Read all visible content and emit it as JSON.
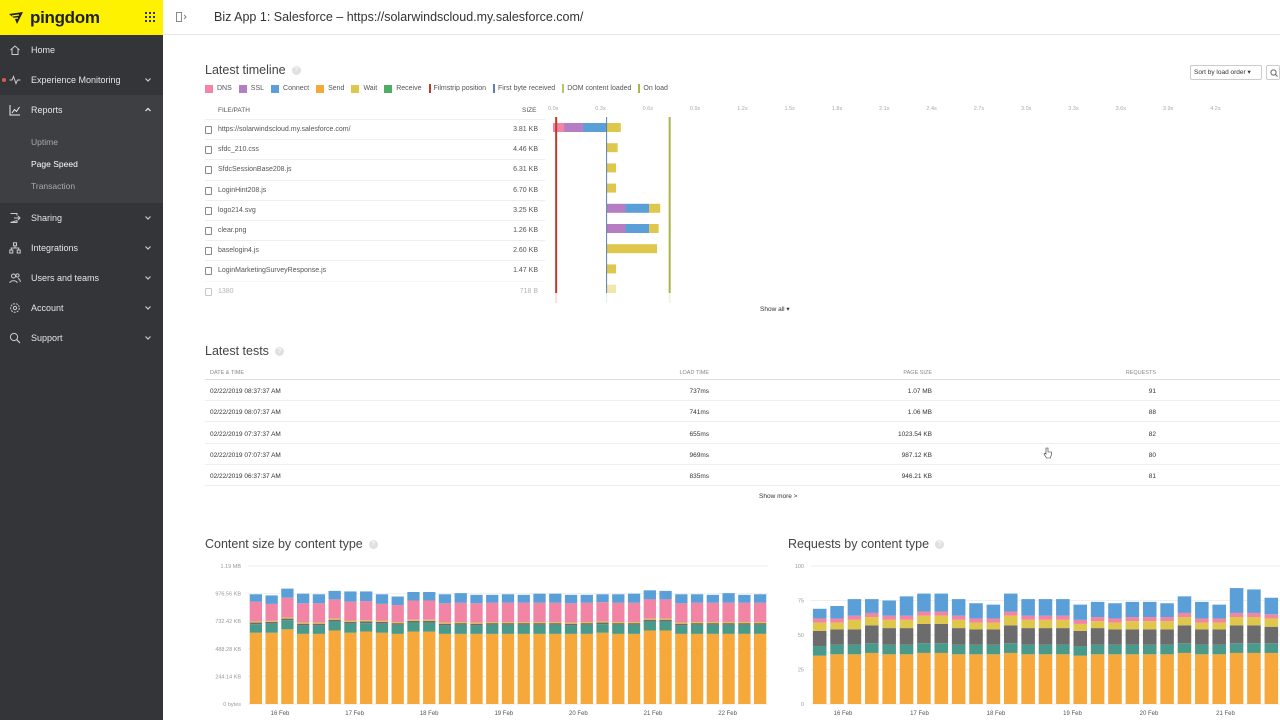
{
  "brand": {
    "name": "pingdom"
  },
  "sidebar": {
    "items": [
      {
        "label": "Home",
        "icon": "home-icon"
      },
      {
        "label": "Experience Monitoring",
        "icon": "pulse-icon"
      },
      {
        "label": "Reports",
        "icon": "chart-icon"
      },
      {
        "label": "Sharing",
        "icon": "share-icon"
      },
      {
        "label": "Integrations",
        "icon": "integrations-icon"
      },
      {
        "label": "Users and teams",
        "icon": "users-icon"
      },
      {
        "label": "Account",
        "icon": "gear-icon"
      },
      {
        "label": "Support",
        "icon": "support-icon"
      }
    ],
    "reports_sub": [
      {
        "label": "Uptime"
      },
      {
        "label": "Page Speed"
      },
      {
        "label": "Transaction"
      }
    ]
  },
  "topbar": {
    "title": "Biz App 1: Salesforce – https://solarwindscloud.my.salesforce.com/"
  },
  "timeline": {
    "title": "Latest timeline",
    "sort_label": "Sort by load order ▾",
    "legend": [
      {
        "label": "DNS",
        "color": "#f285a5",
        "kind": "box"
      },
      {
        "label": "SSL",
        "color": "#b57ec2",
        "kind": "box"
      },
      {
        "label": "Connect",
        "color": "#5a9fd8",
        "kind": "box"
      },
      {
        "label": "Send",
        "color": "#f6a83a",
        "kind": "box"
      },
      {
        "label": "Wait",
        "color": "#dfc74b",
        "kind": "box"
      },
      {
        "label": "Receive",
        "color": "#4fae64",
        "kind": "box"
      },
      {
        "label": "Filmstrip position",
        "color": "#c0392b",
        "kind": "line"
      },
      {
        "label": "First byte received",
        "color": "#5a7fa8",
        "kind": "line"
      },
      {
        "label": "DOM content loaded",
        "color": "#b8c66a",
        "kind": "line"
      },
      {
        "label": "On load",
        "color": "#aab44a",
        "kind": "line"
      }
    ],
    "col_file": "FILE/PATH",
    "col_size": "SIZE",
    "ticks": [
      "0.0s",
      "0.3s",
      "0.6s",
      "0.9s",
      "1.2s",
      "1.5s",
      "1.8s",
      "2.1s",
      "2.4s",
      "2.7s",
      "3.0s",
      "3.3s",
      "3.6s",
      "3.9s",
      "4.2s"
    ],
    "rows": [
      {
        "name": "https://solarwindscloud.my.salesforce.com/",
        "size": "3.81 KB",
        "icon": "file-icon",
        "segments": [
          [
            0.0,
            0.07,
            "#f285a5"
          ],
          [
            0.07,
            0.19,
            "#b57ec2"
          ],
          [
            0.19,
            0.34,
            "#5a9fd8"
          ],
          [
            0.34,
            0.43,
            "#dfc74b"
          ]
        ]
      },
      {
        "name": "sfdc_210.css",
        "size": "4.46 KB",
        "icon": "css-icon",
        "segments": [
          [
            0.34,
            0.41,
            "#dfc74b"
          ]
        ]
      },
      {
        "name": "SfdcSessionBase208.js",
        "size": "6.31 KB",
        "icon": "script-icon",
        "segments": [
          [
            0.34,
            0.4,
            "#dfc74b"
          ]
        ]
      },
      {
        "name": "LoginHint208.js",
        "size": "6.70 KB",
        "icon": "script-icon",
        "segments": [
          [
            0.34,
            0.4,
            "#dfc74b"
          ]
        ]
      },
      {
        "name": "logo214.svg",
        "size": "3.25 KB",
        "icon": "image-icon",
        "segments": [
          [
            0.34,
            0.46,
            "#b57ec2"
          ],
          [
            0.46,
            0.61,
            "#5a9fd8"
          ],
          [
            0.61,
            0.68,
            "#dfc74b"
          ]
        ]
      },
      {
        "name": "clear.png",
        "size": "1.26 KB",
        "icon": "image-icon",
        "segments": [
          [
            0.34,
            0.46,
            "#b57ec2"
          ],
          [
            0.46,
            0.61,
            "#5a9fd8"
          ],
          [
            0.61,
            0.67,
            "#dfc74b"
          ]
        ]
      },
      {
        "name": "baselogin4.js",
        "size": "2.60 KB",
        "icon": "script-icon",
        "segments": [
          [
            0.34,
            0.66,
            "#dfc74b"
          ]
        ]
      },
      {
        "name": "LoginMarketingSurveyResponse.js",
        "size": "1.47 KB",
        "icon": "script-icon",
        "segments": [
          [
            0.34,
            0.4,
            "#dfc74b"
          ]
        ]
      },
      {
        "name": "1380",
        "size": "718 B",
        "icon": "image-icon",
        "segments": [
          [
            0.34,
            0.4,
            "#dfc74b"
          ]
        ]
      }
    ],
    "markers": [
      {
        "name": "filmstrip",
        "t": 0.02,
        "color": "#c0392b"
      },
      {
        "name": "first-byte",
        "t": 0.34,
        "color": "#5a7fa8"
      },
      {
        "name": "on-load",
        "t": 0.74,
        "color": "#aab44a"
      }
    ],
    "show_all": "Show all ▾"
  },
  "tests": {
    "title": "Latest tests",
    "headers": [
      "DATE & TIME",
      "LOAD TIME",
      "PAGE SIZE",
      "REQUESTS"
    ],
    "rows": [
      [
        "02/22/2019 08:37:37 AM",
        "737ms",
        "1.07 MB",
        "91"
      ],
      [
        "02/22/2019 08:07:37 AM",
        "741ms",
        "1.06 MB",
        "88"
      ],
      [
        "02/22/2019 07:37:37 AM",
        "655ms",
        "1023.54 KB",
        "82"
      ],
      [
        "02/22/2019 07:07:37 AM",
        "969ms",
        "987.12 KB",
        "80"
      ],
      [
        "02/22/2019 06:37:37 AM",
        "835ms",
        "946.21 KB",
        "81"
      ]
    ],
    "show_more": "Show more >"
  },
  "charts": {
    "content_size_title": "Content size by content type",
    "requests_title": "Requests by content type"
  },
  "chart_data": [
    {
      "type": "bar",
      "stacked": true,
      "title": "Content size by content type",
      "y_tick_labels": [
        "0 bytes",
        "244.14 KB",
        "488.28 KB",
        "732.42 KB",
        "976.56 KB",
        "1.19 MB"
      ],
      "ylim": [
        0,
        1220
      ],
      "x_tick_labels": [
        "16 Feb",
        "17 Feb",
        "18 Feb",
        "19 Feb",
        "20 Feb",
        "21 Feb",
        "22 Feb"
      ],
      "series": [
        {
          "color": "#f6a83a",
          "values": [
            630,
            630,
            660,
            620,
            620,
            650,
            630,
            640,
            630,
            620,
            640,
            640,
            620,
            620,
            620,
            620,
            620,
            620,
            620,
            620,
            620,
            620,
            630,
            620,
            620,
            650,
            650,
            620,
            620,
            620,
            620,
            620,
            620
          ]
        },
        {
          "color": "#4a9a8c",
          "values": [
            75,
            80,
            80,
            75,
            75,
            80,
            80,
            75,
            80,
            80,
            80,
            80,
            75,
            80,
            75,
            80,
            80,
            80,
            80,
            80,
            75,
            80,
            75,
            80,
            80,
            80,
            80,
            75,
            80,
            80,
            80,
            80,
            80
          ]
        },
        {
          "color": "#6c6c6c",
          "values": [
            15,
            15,
            15,
            15,
            15,
            15,
            15,
            15,
            15,
            15,
            15,
            15,
            15,
            15,
            15,
            15,
            15,
            15,
            15,
            15,
            15,
            15,
            15,
            15,
            15,
            15,
            15,
            15,
            15,
            15,
            15,
            15,
            15
          ]
        },
        {
          "color": "#dfc74b",
          "values": [
            10,
            10,
            10,
            10,
            10,
            10,
            10,
            10,
            10,
            10,
            10,
            10,
            10,
            10,
            10,
            10,
            10,
            10,
            10,
            10,
            10,
            10,
            10,
            10,
            10,
            10,
            10,
            10,
            10,
            10,
            10,
            10,
            10
          ]
        },
        {
          "color": "#f285a5",
          "values": [
            175,
            150,
            175,
            170,
            170,
            170,
            170,
            170,
            150,
            150,
            170,
            170,
            170,
            170,
            170,
            170,
            170,
            170,
            170,
            170,
            170,
            170,
            170,
            170,
            170,
            170,
            170,
            170,
            170,
            170,
            170,
            170,
            170
          ]
        },
        {
          "color": "#5a9fd8",
          "values": [
            65,
            75,
            80,
            85,
            80,
            75,
            90,
            85,
            85,
            75,
            75,
            75,
            80,
            85,
            75,
            70,
            75,
            70,
            80,
            80,
            75,
            70,
            70,
            75,
            80,
            80,
            75,
            80,
            75,
            70,
            85,
            70,
            75
          ]
        }
      ]
    },
    {
      "type": "bar",
      "stacked": true,
      "title": "Requests by content type",
      "y_tick_labels": [
        "0",
        "25",
        "50",
        "75",
        "100"
      ],
      "ylim": [
        0,
        100
      ],
      "x_tick_labels": [
        "16 Feb",
        "17 Feb",
        "18 Feb",
        "19 Feb",
        "20 Feb",
        "21 Feb"
      ],
      "series": [
        {
          "color": "#f6a83a",
          "values": [
            35,
            36,
            36,
            37,
            36,
            36,
            37,
            37,
            36,
            36,
            36,
            37,
            36,
            36,
            36,
            35,
            36,
            36,
            36,
            36,
            36,
            37,
            36,
            36,
            37,
            37,
            37
          ]
        },
        {
          "color": "#4a9a8c",
          "values": [
            7,
            7,
            7,
            7,
            7,
            7,
            7,
            7,
            7,
            7,
            7,
            7,
            7,
            7,
            7,
            7,
            7,
            7,
            7,
            7,
            7,
            7,
            7,
            7,
            7,
            7,
            7
          ]
        },
        {
          "color": "#6c6c6c",
          "values": [
            11,
            11,
            11,
            13,
            12,
            12,
            14,
            14,
            12,
            11,
            11,
            13,
            12,
            12,
            12,
            11,
            12,
            11,
            11,
            11,
            11,
            13,
            11,
            11,
            13,
            13,
            12
          ]
        },
        {
          "color": "#dfc74b",
          "values": [
            6,
            5,
            7,
            6,
            6,
            6,
            6,
            6,
            6,
            5,
            5,
            7,
            6,
            6,
            6,
            5,
            5,
            5,
            6,
            6,
            6,
            6,
            5,
            5,
            6,
            6,
            6
          ]
        },
        {
          "color": "#f285a5",
          "values": [
            3,
            3,
            3,
            3,
            3,
            3,
            3,
            3,
            3,
            3,
            3,
            3,
            3,
            3,
            3,
            3,
            3,
            3,
            3,
            3,
            3,
            3,
            3,
            3,
            3,
            3,
            3
          ]
        },
        {
          "color": "#5a9fd8",
          "values": [
            7,
            9,
            12,
            10,
            11,
            14,
            13,
            13,
            12,
            11,
            10,
            13,
            12,
            12,
            12,
            11,
            11,
            11,
            11,
            11,
            10,
            12,
            12,
            10,
            18,
            17,
            12
          ]
        }
      ]
    }
  ]
}
